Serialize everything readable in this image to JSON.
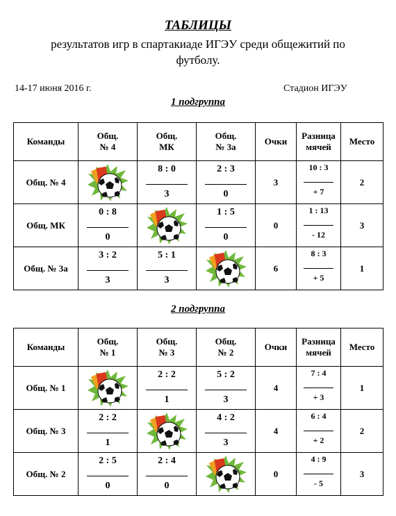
{
  "header": {
    "title": "ТАБЛИЦЫ",
    "subtitle_line1": "результатов игр в спартакиаде ИГЭУ среди общежитий по",
    "subtitle_line2": "футболу.",
    "date": "14-17 июня  2016 г.",
    "venue": "Стадион ИГЭУ"
  },
  "groups": [
    {
      "title": "1 подгруппа",
      "columns": {
        "teams": "Команды",
        "opponents": [
          [
            "Общ.",
            "№ 4"
          ],
          [
            "Общ.",
            "МК"
          ],
          [
            "Общ.",
            "№ 3а"
          ]
        ],
        "points": "Очки",
        "diff": [
          "Разница",
          "мячей"
        ],
        "place": "Место"
      },
      "rows": [
        {
          "team": "Общ. № 4",
          "scores": [
            null,
            [
              "8 : 0",
              "3"
            ],
            [
              "2 : 3",
              "0"
            ]
          ],
          "points": "3",
          "diff": [
            "10 : 3",
            "+ 7"
          ],
          "place": "2"
        },
        {
          "team": "Общ. МК",
          "scores": [
            [
              "0 : 8",
              "0"
            ],
            null,
            [
              "1 : 5",
              "0"
            ]
          ],
          "points": "0",
          "diff": [
            "1 : 13",
            "- 12"
          ],
          "place": "3"
        },
        {
          "team": "Общ. № 3а",
          "scores": [
            [
              "3 : 2",
              "3"
            ],
            [
              "5 : 1",
              "3"
            ],
            null
          ],
          "points": "6",
          "diff": [
            "8 : 3",
            "+ 5"
          ],
          "place": "1"
        }
      ]
    },
    {
      "title": "2 подгруппа",
      "columns": {
        "teams": "Команды",
        "opponents": [
          [
            "Общ.",
            "№ 1"
          ],
          [
            "Общ.",
            "№ 3"
          ],
          [
            "Общ.",
            "№ 2"
          ]
        ],
        "points": "Очки",
        "diff": [
          "Разница",
          "мячей"
        ],
        "place": "Место"
      },
      "rows": [
        {
          "team": "Общ. № 1",
          "scores": [
            null,
            [
              "2 : 2",
              "1"
            ],
            [
              "5 : 2",
              "3"
            ]
          ],
          "points": "4",
          "diff": [
            "7 : 4",
            "+ 3"
          ],
          "place": "1"
        },
        {
          "team": "Общ. № 3",
          "scores": [
            [
              "2 : 2",
              "1"
            ],
            null,
            [
              "4 : 2",
              "3"
            ]
          ],
          "points": "4",
          "diff": [
            "6 : 4",
            "+ 2"
          ],
          "place": "2"
        },
        {
          "team": "Общ. № 2",
          "scores": [
            [
              "2 : 5",
              "0"
            ],
            [
              "2 : 4",
              "0"
            ],
            null
          ],
          "points": "0",
          "diff": [
            "4 : 9",
            "- 5"
          ],
          "place": "3"
        }
      ]
    }
  ],
  "icons": {
    "diagonal": "soccer-ball-icon"
  },
  "colors": {
    "burst_green": "#6fb83a",
    "card_red": "#d93a1e",
    "card_orange": "#f0a020"
  }
}
